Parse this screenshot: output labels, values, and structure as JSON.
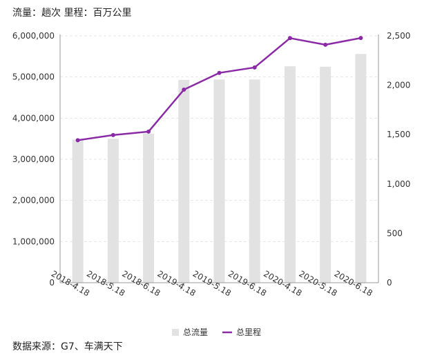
{
  "header": {
    "units": "流量：趟次 里程：百万公里"
  },
  "footer": {
    "source": "数据来源：G7、车满天下"
  },
  "colors": {
    "bar": "#e2e2e2",
    "line": "#8b2aa6",
    "grid": "#e6e6e6",
    "axis": "#999999"
  },
  "chart_data": {
    "type": "bar",
    "categories": [
      "2018-4.18",
      "2018-5.18",
      "2018-6.18",
      "2019-4.18",
      "2019-5.18",
      "2019-6.18",
      "2020-4.18",
      "2020-5.18",
      "2020-6.18"
    ],
    "series": [
      {
        "name": "总流量",
        "type": "bar",
        "axis": "left",
        "values": [
          3480000,
          3500000,
          3620000,
          4930000,
          4940000,
          4940000,
          5260000,
          5250000,
          5560000
        ]
      },
      {
        "name": "总里程",
        "type": "line",
        "axis": "right",
        "values": [
          1443,
          1495,
          1530,
          1955,
          2125,
          2180,
          2477,
          2410,
          2478
        ]
      }
    ],
    "y_left": {
      "range": [
        0,
        6000000
      ],
      "ticks": [
        "0",
        "1,000,000",
        "2,000,000",
        "3,000,000",
        "4,000,000",
        "5,000,000",
        "6,000,000"
      ]
    },
    "y_right": {
      "range": [
        0,
        2500
      ],
      "ticks": [
        "0",
        "500",
        "1,000",
        "1,500",
        "2,000",
        "2,500"
      ]
    },
    "grid": true,
    "legend_position": "bottom"
  }
}
